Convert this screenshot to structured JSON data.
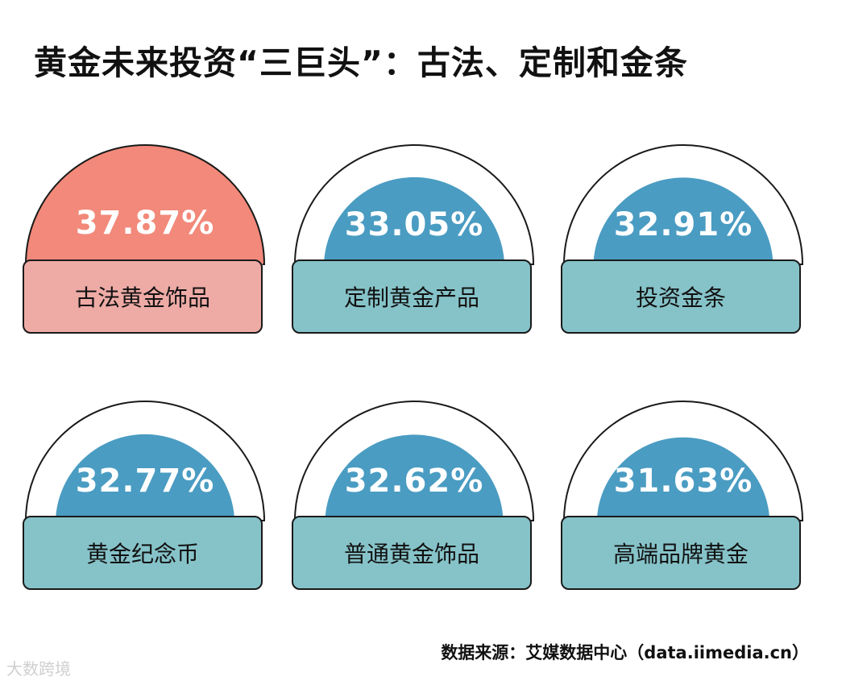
{
  "title": "黄金未来投资“三巨头”：古法、定制和金条",
  "source": "数据来源：艾媒数据中心（data.iimedia.cn）",
  "watermark": "大数跨境",
  "colors": {
    "highlight_fill": "#f2897a",
    "highlight_label": "#eeaba6",
    "normal_fill": "#4a9cc2",
    "normal_label": "#86c3c9",
    "outline": "#1a1a1a",
    "track": "#ffffff"
  },
  "chart_data": {
    "type": "gauge",
    "unit": "%",
    "scale_max": 37.87,
    "items": [
      {
        "label": "古法黄金饰品",
        "value": 37.87,
        "display": "37.87%",
        "highlight": true
      },
      {
        "label": "定制黄金产品",
        "value": 33.05,
        "display": "33.05%",
        "highlight": false
      },
      {
        "label": "投资金条",
        "value": 32.91,
        "display": "32.91%",
        "highlight": false
      },
      {
        "label": "黄金纪念币",
        "value": 32.77,
        "display": "32.77%",
        "highlight": false
      },
      {
        "label": "普通黄金饰品",
        "value": 32.62,
        "display": "32.62%",
        "highlight": false
      },
      {
        "label": "高端品牌黄金",
        "value": 31.63,
        "display": "31.63%",
        "highlight": false
      }
    ]
  }
}
